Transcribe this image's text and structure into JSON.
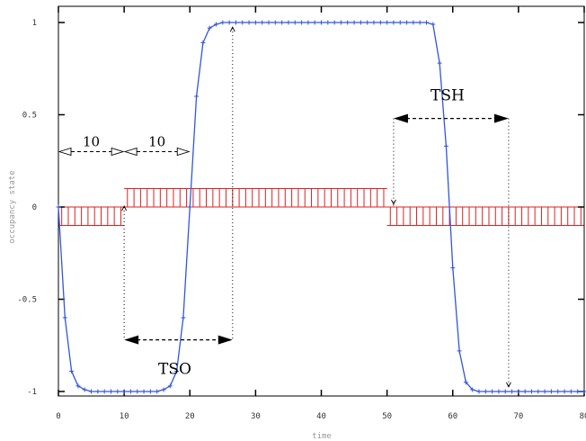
{
  "chart_data": {
    "type": "line",
    "xlabel": "time",
    "ylabel": "occupancy state",
    "xlim": [
      0,
      80
    ],
    "ylim": [
      -1,
      1
    ],
    "xticks": [
      "0",
      "10",
      "20",
      "30",
      "40",
      "50",
      "60",
      "70",
      "80"
    ],
    "yticks": [
      "-1",
      "-0.5",
      "0",
      "0.5",
      "1"
    ],
    "grid": false,
    "colors": {
      "curve": "#3355dd",
      "markers": "#3355dd",
      "pulses": "#dd2222",
      "annotations": "#000000"
    },
    "series": [
      {
        "values_y_for_x_0_to_80": [
          0,
          -0.6,
          -0.89,
          -0.97,
          -0.99,
          -1,
          -1,
          -1,
          -1,
          -1,
          -1,
          -1,
          -1,
          -1,
          -1,
          -1,
          -0.99,
          -0.97,
          -0.89,
          -0.6,
          0,
          0.6,
          0.89,
          0.97,
          0.99,
          1,
          1,
          1,
          1,
          1,
          1,
          1,
          1,
          1,
          1,
          1,
          1,
          1,
          1,
          1,
          1,
          1,
          1,
          1,
          1,
          1,
          1,
          1,
          1,
          1,
          1,
          1,
          1,
          1,
          1,
          1,
          1,
          0.99,
          0.78,
          0.33,
          -0.33,
          -0.78,
          -0.95,
          -0.99,
          -1,
          -1,
          -1,
          -1,
          -1,
          -1,
          -1,
          -1,
          -1,
          -1,
          -1,
          -1,
          -1,
          -1,
          -1,
          -1,
          -1
        ]
      }
    ],
    "pulses": {
      "segments": [
        {
          "x_start": 0,
          "x_end": 10,
          "y": -0.1
        },
        {
          "x_start": 10,
          "x_end": 50,
          "y": 0.1
        },
        {
          "x_start": 50,
          "x_end": 80,
          "y": -0.1
        }
      ],
      "bar_spacing": 1
    },
    "annotations": [
      {
        "label": "10",
        "x1": 0,
        "x2": 10,
        "y": 0.3,
        "style": "open-arrow"
      },
      {
        "label": "10",
        "x1": 10,
        "x2": 20,
        "y": 0.3,
        "style": "open-arrow"
      },
      {
        "label": "TSO",
        "x1": 10,
        "x2": 26.5,
        "y": -0.72,
        "style": "filled-arrow"
      },
      {
        "label": "TSH",
        "x1": 51,
        "x2": 68.5,
        "y": 0.48,
        "style": "filled-arrow"
      }
    ],
    "reference_lines": [
      {
        "x": 10,
        "y_from": 0,
        "y_to": -0.72
      },
      {
        "x": 26.5,
        "y_from": 0.97,
        "y_to": -0.72
      },
      {
        "x": 51,
        "y_from": 0.48,
        "y_to": 0
      },
      {
        "x": 68.5,
        "y_from": 0.48,
        "y_to": -0.97
      }
    ],
    "small_markers": [
      {
        "x": 10,
        "y": 0,
        "glyph": "^"
      },
      {
        "x": 26.5,
        "y": 0.97,
        "glyph": "^"
      },
      {
        "x": 51,
        "y": 0.02,
        "glyph": "v"
      },
      {
        "x": 68.5,
        "y": -0.97,
        "glyph": "v"
      }
    ]
  }
}
